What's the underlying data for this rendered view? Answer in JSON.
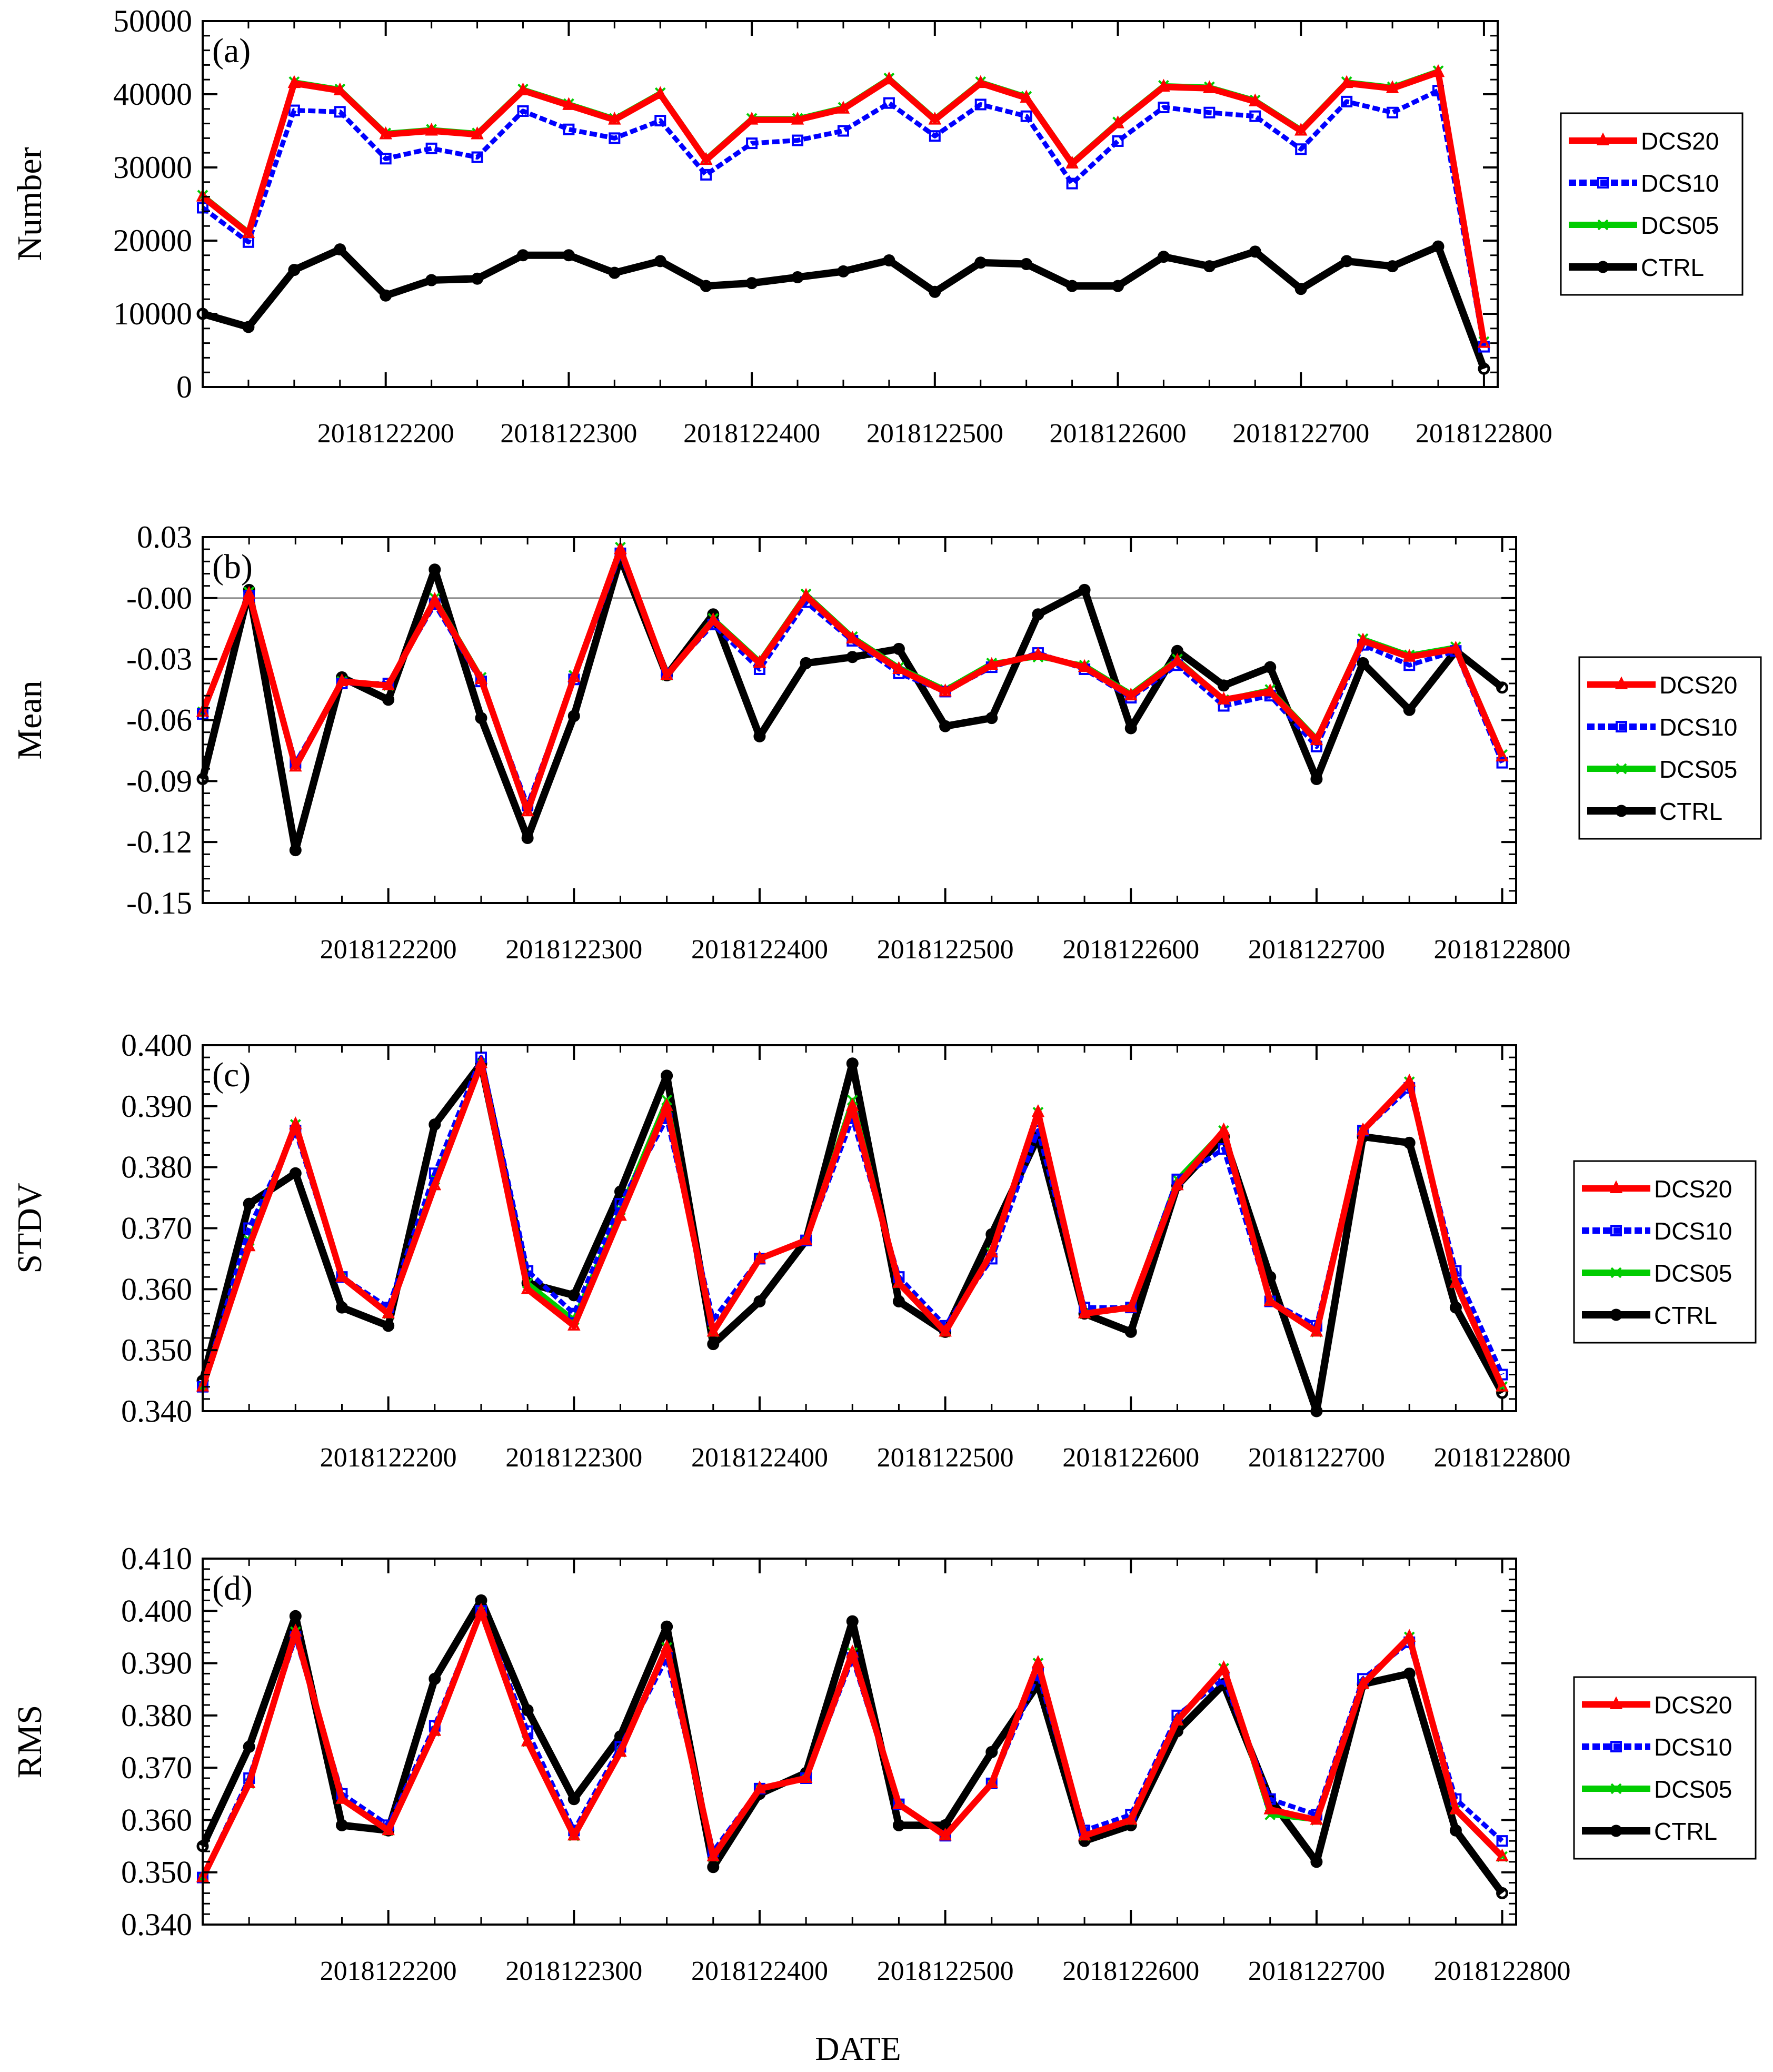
{
  "figure": {
    "xlabel": "DATE"
  },
  "series_style": {
    "DCS20": {
      "color": "#ff0000",
      "marker": "triangle"
    },
    "DCS10": {
      "color": "#0000ff",
      "marker": "square"
    },
    "DCS05": {
      "color": "#00cc00",
      "marker": "cross"
    },
    "CTRL": {
      "color": "#000000",
      "marker": "circle"
    }
  },
  "chart_data": [
    {
      "type": "line",
      "panel_label": "(a)",
      "ylabel": "Number",
      "ylim": [
        0,
        50000
      ],
      "yticks": [
        0,
        10000,
        20000,
        30000,
        40000,
        50000
      ],
      "ytick_labels": [
        "0",
        "10000",
        "20000",
        "30000",
        "40000",
        "50000"
      ],
      "xlim": [
        0,
        28.3
      ],
      "xticks": [
        4,
        8,
        12,
        16,
        20,
        24,
        28
      ],
      "xtick_labels": [
        "2018122200",
        "2018122300",
        "2018122400",
        "2018122500",
        "2018122600",
        "2018122700",
        "2018122800"
      ],
      "zero_line": false,
      "series": [
        {
          "name": "DCS20",
          "values": [
            26000,
            21000,
            41500,
            40500,
            34500,
            35000,
            34500,
            40500,
            38500,
            36500,
            40000,
            31000,
            36500,
            36500,
            38000,
            42000,
            36500,
            41500,
            39500,
            30500,
            36000,
            41000,
            40800,
            39000,
            35000,
            41500,
            40800,
            43000,
            6000
          ]
        },
        {
          "name": "DCS10",
          "values": [
            24500,
            19800,
            37800,
            37600,
            31200,
            32600,
            31400,
            37700,
            35200,
            34000,
            36400,
            29000,
            33300,
            33700,
            35000,
            38800,
            34300,
            38600,
            37000,
            27800,
            33600,
            38200,
            37500,
            37000,
            32500,
            39000,
            37500,
            40500,
            5500
          ]
        },
        {
          "name": "DCS05",
          "values": [
            26200,
            21200,
            41700,
            40700,
            34700,
            35200,
            34700,
            40700,
            38700,
            36700,
            40200,
            31200,
            36700,
            36700,
            38200,
            42200,
            36700,
            41700,
            39700,
            30700,
            36200,
            41200,
            41000,
            39200,
            35200,
            41700,
            41000,
            43200,
            6200
          ]
        },
        {
          "name": "CTRL",
          "values": [
            10000,
            8200,
            16000,
            18800,
            12500,
            14600,
            14800,
            18000,
            18000,
            15600,
            17200,
            13800,
            14200,
            15000,
            15800,
            17300,
            13000,
            17000,
            16800,
            13800,
            13800,
            17800,
            16500,
            18500,
            13400,
            17200,
            16500,
            19200,
            2500
          ]
        }
      ]
    },
    {
      "type": "line",
      "panel_label": "(b)",
      "ylabel": "Mean",
      "ylim": [
        -0.15,
        0.03
      ],
      "yticks": [
        -0.15,
        -0.12,
        -0.09,
        -0.06,
        -0.03,
        0,
        0.03
      ],
      "ytick_labels": [
        "-0.15",
        "-0.12",
        "-0.09",
        "-0.06",
        "-0.03",
        "-0.00",
        "0.03"
      ],
      "xlim": [
        0,
        28.3
      ],
      "xticks": [
        4,
        8,
        12,
        16,
        20,
        24,
        28
      ],
      "xtick_labels": [
        "2018122200",
        "2018122300",
        "2018122400",
        "2018122500",
        "2018122600",
        "2018122700",
        "2018122800"
      ],
      "zero_line": true,
      "series": [
        {
          "name": "DCS20",
          "values": [
            -0.056,
            0.002,
            -0.083,
            -0.041,
            -0.043,
            -0.001,
            -0.04,
            -0.105,
            -0.039,
            0.024,
            -0.038,
            -0.011,
            -0.032,
            0.001,
            -0.02,
            -0.035,
            -0.046,
            -0.033,
            -0.028,
            -0.034,
            -0.048,
            -0.031,
            -0.05,
            -0.046,
            -0.07,
            -0.021,
            -0.029,
            -0.025,
            -0.078
          ]
        },
        {
          "name": "DCS10",
          "values": [
            -0.057,
            0.001,
            -0.081,
            -0.042,
            -0.042,
            -0.003,
            -0.041,
            -0.102,
            -0.04,
            0.022,
            -0.037,
            -0.013,
            -0.035,
            -0.002,
            -0.021,
            -0.037,
            -0.046,
            -0.034,
            -0.027,
            -0.035,
            -0.049,
            -0.033,
            -0.053,
            -0.048,
            -0.073,
            -0.023,
            -0.033,
            -0.026,
            -0.081
          ]
        },
        {
          "name": "DCS05",
          "values": [
            -0.056,
            0.003,
            -0.082,
            -0.041,
            -0.043,
            0.0,
            -0.039,
            -0.104,
            -0.038,
            0.025,
            -0.038,
            -0.01,
            -0.031,
            0.002,
            -0.019,
            -0.034,
            -0.045,
            -0.032,
            -0.029,
            -0.033,
            -0.047,
            -0.03,
            -0.05,
            -0.045,
            -0.069,
            -0.02,
            -0.028,
            -0.024,
            -0.077
          ]
        },
        {
          "name": "CTRL",
          "values": [
            -0.089,
            0.004,
            -0.124,
            -0.039,
            -0.05,
            0.014,
            -0.059,
            -0.118,
            -0.058,
            0.02,
            -0.038,
            -0.008,
            -0.068,
            -0.032,
            -0.029,
            -0.025,
            -0.063,
            -0.059,
            -0.008,
            0.004,
            -0.064,
            -0.026,
            -0.043,
            -0.034,
            -0.089,
            -0.032,
            -0.055,
            -0.026,
            -0.044
          ]
        }
      ]
    },
    {
      "type": "line",
      "panel_label": "(c)",
      "ylabel": "STDV",
      "ylim": [
        0.34,
        0.4
      ],
      "yticks": [
        0.34,
        0.35,
        0.36,
        0.37,
        0.38,
        0.39,
        0.4
      ],
      "ytick_labels": [
        "0.340",
        "0.350",
        "0.360",
        "0.370",
        "0.380",
        "0.390",
        "0.400"
      ],
      "xlim": [
        0,
        28.3
      ],
      "xticks": [
        4,
        8,
        12,
        16,
        20,
        24,
        28
      ],
      "xtick_labels": [
        "2018122200",
        "2018122300",
        "2018122400",
        "2018122500",
        "2018122600",
        "2018122700",
        "2018122800"
      ],
      "zero_line": false,
      "series": [
        {
          "name": "DCS20",
          "values": [
            0.344,
            0.367,
            0.387,
            0.362,
            0.356,
            0.377,
            0.397,
            0.36,
            0.354,
            0.372,
            0.39,
            0.353,
            0.365,
            0.368,
            0.39,
            0.361,
            0.353,
            0.366,
            0.389,
            0.356,
            0.357,
            0.377,
            0.386,
            0.358,
            0.353,
            0.386,
            0.394,
            0.361,
            0.344
          ]
        },
        {
          "name": "DCS10",
          "values": [
            0.344,
            0.37,
            0.386,
            0.362,
            0.357,
            0.379,
            0.398,
            0.363,
            0.356,
            0.374,
            0.388,
            0.355,
            0.365,
            0.368,
            0.388,
            0.362,
            0.354,
            0.365,
            0.386,
            0.357,
            0.357,
            0.378,
            0.383,
            0.358,
            0.354,
            0.386,
            0.393,
            0.363,
            0.346
          ]
        },
        {
          "name": "DCS05",
          "values": [
            0.344,
            0.368,
            0.387,
            0.362,
            0.356,
            0.378,
            0.397,
            0.361,
            0.355,
            0.373,
            0.391,
            0.353,
            0.365,
            0.368,
            0.391,
            0.361,
            0.353,
            0.366,
            0.389,
            0.356,
            0.357,
            0.378,
            0.386,
            0.358,
            0.353,
            0.386,
            0.394,
            0.361,
            0.344
          ]
        },
        {
          "name": "CTRL",
          "values": [
            0.345,
            0.374,
            0.379,
            0.357,
            0.354,
            0.387,
            0.397,
            0.361,
            0.359,
            0.376,
            0.395,
            0.351,
            0.358,
            0.368,
            0.397,
            0.358,
            0.353,
            0.369,
            0.385,
            0.356,
            0.353,
            0.377,
            0.385,
            0.362,
            0.34,
            0.385,
            0.384,
            0.357,
            0.343
          ]
        }
      ]
    },
    {
      "type": "line",
      "panel_label": "(d)",
      "ylabel": "RMS",
      "ylim": [
        0.34,
        0.41
      ],
      "yticks": [
        0.34,
        0.35,
        0.36,
        0.37,
        0.38,
        0.39,
        0.4,
        0.41
      ],
      "ytick_labels": [
        "0.340",
        "0.350",
        "0.360",
        "0.370",
        "0.380",
        "0.390",
        "0.400",
        "0.410"
      ],
      "xlim": [
        0,
        28.3
      ],
      "xticks": [
        4,
        8,
        12,
        16,
        20,
        24,
        28
      ],
      "xtick_labels": [
        "2018122200",
        "2018122300",
        "2018122400",
        "2018122500",
        "2018122600",
        "2018122700",
        "2018122800"
      ],
      "zero_line": false,
      "series": [
        {
          "name": "DCS20",
          "values": [
            0.349,
            0.367,
            0.396,
            0.364,
            0.358,
            0.377,
            0.4,
            0.375,
            0.357,
            0.373,
            0.393,
            0.353,
            0.366,
            0.368,
            0.392,
            0.363,
            0.357,
            0.367,
            0.39,
            0.357,
            0.36,
            0.379,
            0.389,
            0.362,
            0.36,
            0.386,
            0.395,
            0.362,
            0.353
          ]
        },
        {
          "name": "DCS10",
          "values": [
            0.349,
            0.368,
            0.395,
            0.365,
            0.359,
            0.378,
            0.4,
            0.377,
            0.358,
            0.374,
            0.391,
            0.354,
            0.366,
            0.368,
            0.391,
            0.363,
            0.357,
            0.367,
            0.388,
            0.358,
            0.361,
            0.38,
            0.387,
            0.364,
            0.361,
            0.387,
            0.394,
            0.364,
            0.356
          ]
        },
        {
          "name": "DCS05",
          "values": [
            0.349,
            0.367,
            0.396,
            0.364,
            0.358,
            0.377,
            0.4,
            0.375,
            0.357,
            0.373,
            0.393,
            0.353,
            0.366,
            0.368,
            0.392,
            0.363,
            0.357,
            0.367,
            0.39,
            0.357,
            0.36,
            0.379,
            0.389,
            0.361,
            0.36,
            0.386,
            0.395,
            0.362,
            0.353
          ]
        },
        {
          "name": "CTRL",
          "values": [
            0.355,
            0.374,
            0.399,
            0.359,
            0.358,
            0.387,
            0.402,
            0.381,
            0.364,
            0.376,
            0.397,
            0.351,
            0.365,
            0.369,
            0.398,
            0.359,
            0.359,
            0.373,
            0.386,
            0.356,
            0.359,
            0.377,
            0.386,
            0.364,
            0.352,
            0.386,
            0.388,
            0.358,
            0.346
          ]
        }
      ]
    }
  ]
}
